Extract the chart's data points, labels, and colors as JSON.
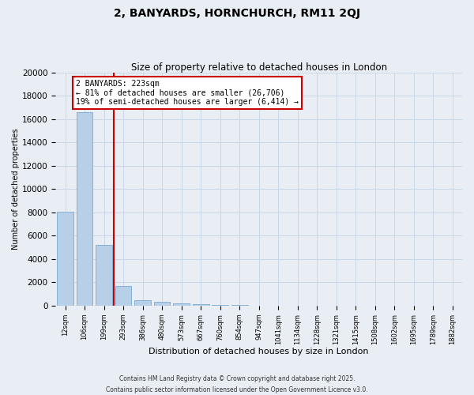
{
  "title_line1": "2, BANYARDS, HORNCHURCH, RM11 2QJ",
  "title_line2": "Size of property relative to detached houses in London",
  "xlabel": "Distribution of detached houses by size in London",
  "ylabel": "Number of detached properties",
  "categories": [
    "12sqm",
    "106sqm",
    "199sqm",
    "293sqm",
    "386sqm",
    "480sqm",
    "573sqm",
    "667sqm",
    "760sqm",
    "854sqm",
    "947sqm",
    "1041sqm",
    "1134sqm",
    "1228sqm",
    "1321sqm",
    "1415sqm",
    "1508sqm",
    "1602sqm",
    "1695sqm",
    "1789sqm",
    "1882sqm"
  ],
  "values": [
    8100,
    16600,
    5200,
    1700,
    500,
    350,
    200,
    150,
    100,
    60,
    0,
    0,
    0,
    0,
    0,
    0,
    0,
    0,
    0,
    0,
    0
  ],
  "bar_color": "#b8cfe8",
  "bar_edge_color": "#7aaad0",
  "vline_x": 2.5,
  "vline_color": "#cc0000",
  "annotation_text": "2 BANYARDS: 223sqm\n← 81% of detached houses are smaller (26,706)\n19% of semi-detached houses are larger (6,414) →",
  "annotation_box_color": "#cc0000",
  "annotation_bg": "white",
  "ylim": [
    0,
    20000
  ],
  "yticks": [
    0,
    2000,
    4000,
    6000,
    8000,
    10000,
    12000,
    14000,
    16000,
    18000,
    20000
  ],
  "grid_color": "#c8d8e8",
  "footer_line1": "Contains HM Land Registry data © Crown copyright and database right 2025.",
  "footer_line2": "Contains public sector information licensed under the Open Government Licence v3.0.",
  "bg_color": "#e8eef4"
}
